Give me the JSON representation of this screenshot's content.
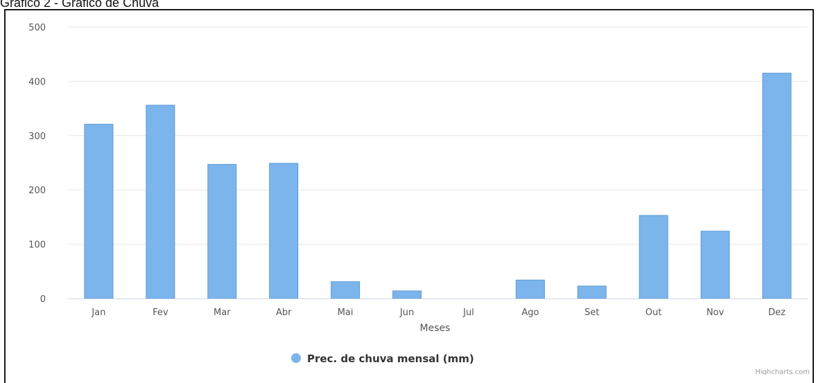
{
  "caption": "Gráfico 2 - Gráfico de Chuva",
  "credit": "Highcharts.com",
  "colors": {
    "bar": "#7cb5ec",
    "bar_stroke": "#5a9ad6",
    "grid": "#e6e6e6",
    "text": "#555555"
  },
  "chart_data": {
    "type": "bar",
    "title": "",
    "xlabel": "Meses",
    "ylabel": "",
    "categories": [
      "Jan",
      "Fev",
      "Mar",
      "Abr",
      "Mai",
      "Jun",
      "Jul",
      "Ago",
      "Set",
      "Out",
      "Nov",
      "Dez"
    ],
    "series": [
      {
        "name": "Prec. de chuva mensal (mm)",
        "values": [
          321,
          356,
          247,
          249,
          31,
          14,
          0,
          34,
          23,
          153,
          124,
          415
        ]
      }
    ],
    "ylim": [
      0,
      500
    ],
    "yticks": [
      "0",
      "100",
      "200",
      "300",
      "400",
      "500"
    ],
    "grid": true,
    "legend_position": "bottom-center"
  }
}
